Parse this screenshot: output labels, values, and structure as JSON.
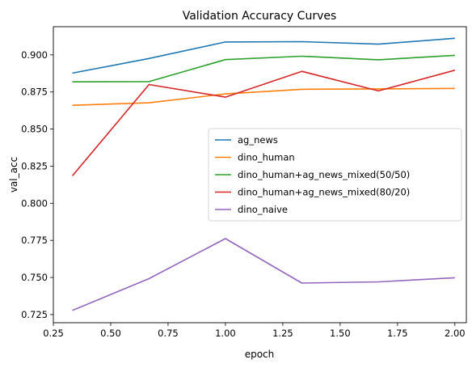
{
  "chart_data": {
    "type": "line",
    "title": "Validation Accuracy Curves",
    "xlabel": "epoch",
    "ylabel": "val_acc",
    "xlim": [
      0.25,
      2.05
    ],
    "ylim": [
      0.7195,
      0.919
    ],
    "grid": false,
    "legend_position": "center-right",
    "x_ticks": [
      0.25,
      0.5,
      0.75,
      1.0,
      1.25,
      1.5,
      1.75,
      2.0
    ],
    "x_tick_labels": [
      "0.25",
      "0.50",
      "0.75",
      "1.00",
      "1.25",
      "1.50",
      "1.75",
      "2.00"
    ],
    "y_ticks": [
      0.725,
      0.75,
      0.775,
      0.8,
      0.825,
      0.85,
      0.875,
      0.9
    ],
    "y_tick_labels": [
      "0.725",
      "0.750",
      "0.775",
      "0.800",
      "0.825",
      "0.850",
      "0.875",
      "0.900"
    ],
    "x": [
      0.333,
      0.667,
      1.0,
      1.333,
      1.667,
      2.0
    ],
    "series": [
      {
        "name": "ag_news",
        "color": "#1f77b4",
        "values": [
          0.8877,
          0.8976,
          0.9087,
          0.9089,
          0.9072,
          0.9112
        ]
      },
      {
        "name": "dino_human",
        "color": "#ff7f0e",
        "values": [
          0.866,
          0.8677,
          0.8737,
          0.8768,
          0.8771,
          0.8774
        ]
      },
      {
        "name": "dino_human+ag_news_mixed(50/50)",
        "color": "#2ca02c",
        "values": [
          0.8818,
          0.882,
          0.8968,
          0.8991,
          0.8967,
          0.8997
        ]
      },
      {
        "name": "dino_human+ag_news_mixed(80/20)",
        "color": "#d62728",
        "values": [
          0.8185,
          0.88,
          0.8715,
          0.8889,
          0.8757,
          0.8897
        ]
      },
      {
        "name": "dino_naive",
        "color": "#9467bd",
        "values": [
          0.7278,
          0.7492,
          0.7762,
          0.7462,
          0.747,
          0.7498
        ]
      }
    ]
  }
}
